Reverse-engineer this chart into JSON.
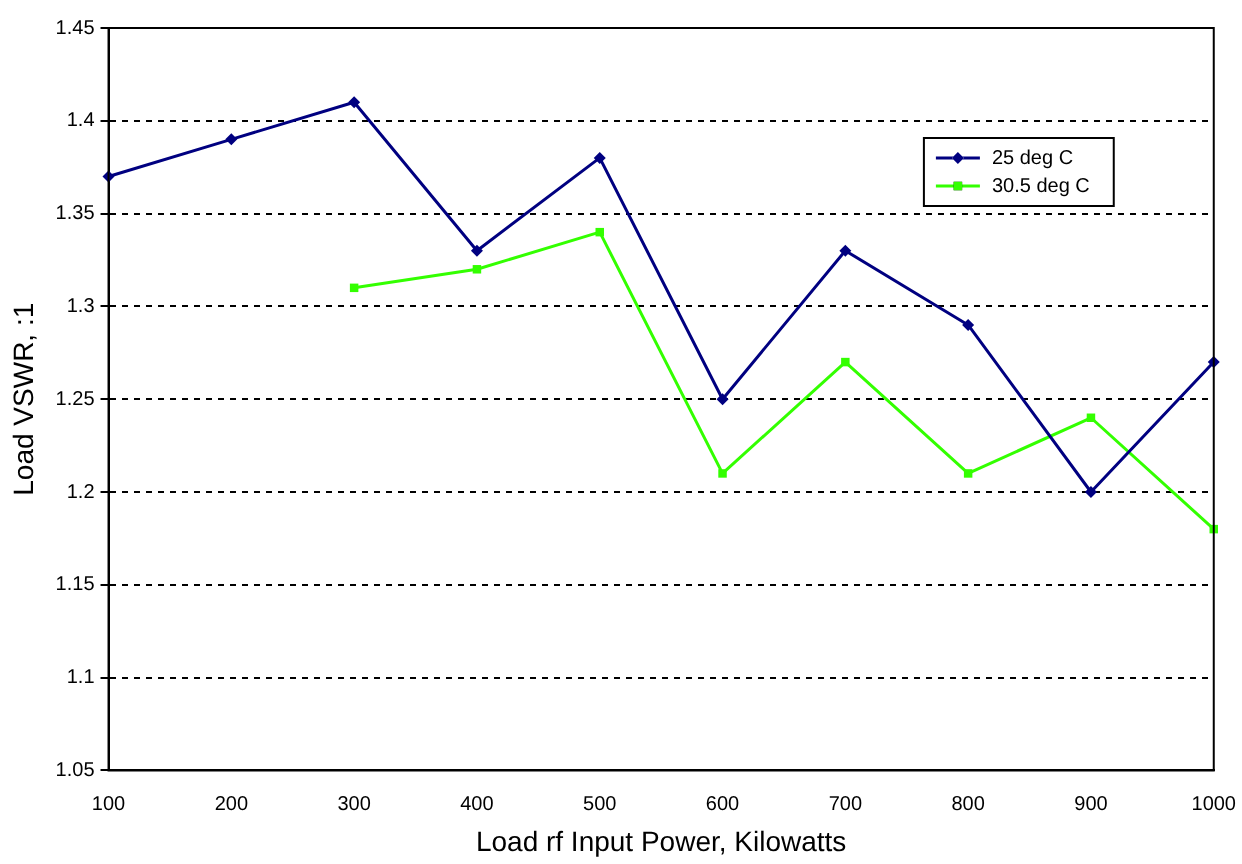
{
  "chart_data": {
    "type": "line",
    "xlabel": "Load rf Input Power, Kilowatts",
    "ylabel": "Load VSWR, :1",
    "categories": [
      "100",
      "200",
      "300",
      "400",
      "500",
      "600",
      "700",
      "800",
      "900",
      "1000"
    ],
    "series": [
      {
        "name": "25 deg C",
        "color": "#000080",
        "marker": "diamond",
        "values": [
          1.37,
          1.39,
          1.41,
          1.33,
          1.38,
          1.25,
          1.33,
          1.29,
          1.2,
          1.27
        ]
      },
      {
        "name": "30.5 deg C",
        "color": "#33ff00",
        "marker": "square",
        "values": [
          null,
          null,
          1.31,
          1.32,
          1.34,
          1.21,
          1.27,
          1.21,
          1.24,
          1.18
        ]
      }
    ],
    "ylim": [
      1.05,
      1.45
    ],
    "yticks": [
      1.05,
      1.1,
      1.15,
      1.2,
      1.25,
      1.3,
      1.35,
      1.4,
      1.45
    ],
    "grid": "y",
    "legend": "top right",
    "line_style": "solid"
  }
}
